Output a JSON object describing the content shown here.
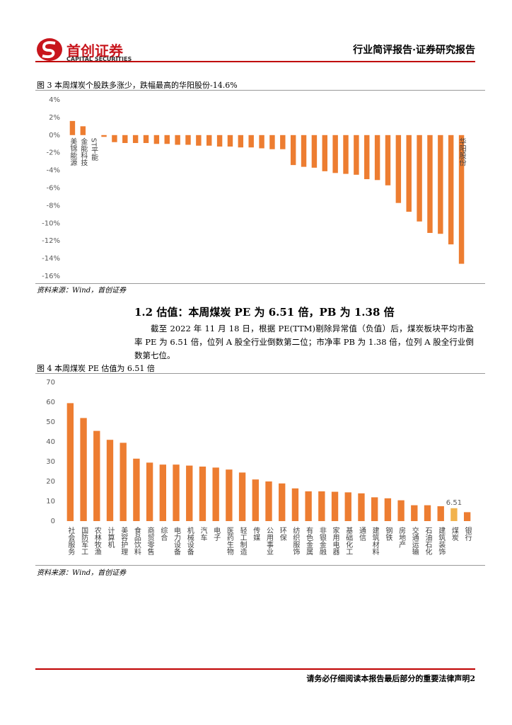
{
  "header": {
    "logo_cn": "首创证券",
    "logo_en": "CAPITAL SECURITIES",
    "report_type": "行业简评报告·证券研究报告"
  },
  "figure3": {
    "caption": "图 3 本周煤炭个股跌多涨少，跌幅最高的华阳股份-14.6%",
    "source": "资料来源：Wind，首创证券"
  },
  "section": {
    "heading": "1.2 估值：本周煤炭 PE 为 6.51 倍，PB 为 1.38 倍",
    "paragraph": "截至 2022 年 11 月 18 日，根据 PE(TTM)剔除异常值（负值）后，煤炭板块平均市盈率 PE 为 6.51 倍，位列 A 股全行业倒数第二位；市净率 PB 为 1.38 倍，位列 A 股全行业倒数第七位。"
  },
  "figure4": {
    "caption": "图 4 本周煤炭 PE 估值为 6.51 倍",
    "source": "资料来源：Wind，首创证券"
  },
  "footer": {
    "text": "请务必仔细阅读本报告最后部分的重要法律声明2"
  },
  "chart_data": [
    {
      "type": "bar",
      "color": "#ED7D31",
      "categories": [
        "美锦能源",
        "金能科技",
        "ST平能",
        null,
        null,
        null,
        null,
        null,
        null,
        null,
        null,
        null,
        null,
        null,
        null,
        null,
        null,
        null,
        null,
        null,
        null,
        null,
        null,
        null,
        null,
        null,
        null,
        null,
        null,
        null,
        null,
        null,
        null,
        null,
        null,
        null,
        null,
        "华阳股份"
      ],
      "values": [
        1.6,
        1.0,
        0,
        -0.2,
        -0.8,
        -0.9,
        -0.9,
        -0.9,
        -1.0,
        -1.0,
        -1.1,
        -1.1,
        -1.2,
        -1.2,
        -1.3,
        -1.3,
        -1.4,
        -1.4,
        -1.5,
        -1.6,
        -1.6,
        -3.4,
        -3.6,
        -3.7,
        -4.1,
        -4.3,
        -4.4,
        -4.5,
        -5.0,
        -5.1,
        -5.7,
        -7.7,
        -8.7,
        -9.8,
        -11.1,
        -11.2,
        -12.4,
        -14.6
      ],
      "ylim": [
        -16,
        4
      ],
      "yticks": [
        {
          "value": 4,
          "label": "4%"
        },
        {
          "value": 2,
          "label": "2%"
        },
        {
          "value": 0,
          "label": "0%"
        },
        {
          "value": -2,
          "label": "-2%"
        },
        {
          "value": -4,
          "label": "-4%"
        },
        {
          "value": -6,
          "label": "-6%"
        },
        {
          "value": -8,
          "label": "-8%"
        },
        {
          "value": -10,
          "label": "-10%"
        },
        {
          "value": -12,
          "label": "-12%"
        },
        {
          "value": -14,
          "label": "-14%"
        },
        {
          "value": -16,
          "label": "-16%"
        }
      ]
    },
    {
      "type": "bar",
      "categories": [
        "社会服务",
        "国防军工",
        "农林牧渔",
        "计算机",
        "美容护理",
        "食品饮料",
        "商贸零售",
        "综合",
        "电力设备",
        "机械设备",
        "汽车",
        "电子",
        "医药生物",
        "轻工制造",
        "传媒",
        "公用事业",
        "环保",
        "纺织服饰",
        "有色金属",
        "非银金融",
        "家用电器",
        "基础化工",
        "通信",
        "建筑材料",
        "钢铁",
        "房地产",
        "交通运输",
        "石油石化",
        "建筑装饰",
        "煤炭",
        "银行"
      ],
      "values": [
        59.5,
        52,
        45.5,
        41,
        39.5,
        31.5,
        29.5,
        28.5,
        28.5,
        28,
        27.5,
        27,
        26,
        24.5,
        21,
        20,
        19,
        16.5,
        15,
        15,
        14.8,
        14.5,
        14,
        12,
        11.5,
        10.5,
        8,
        8,
        7.5,
        6.51,
        4.5
      ],
      "colors": [
        "#ED7D31",
        "#ED7D31",
        "#ED7D31",
        "#ED7D31",
        "#ED7D31",
        "#ED7D31",
        "#ED7D31",
        "#ED7D31",
        "#ED7D31",
        "#ED7D31",
        "#ED7D31",
        "#ED7D31",
        "#ED7D31",
        "#ED7D31",
        "#ED7D31",
        "#ED7D31",
        "#ED7D31",
        "#ED7D31",
        "#ED7D31",
        "#ED7D31",
        "#ED7D31",
        "#ED7D31",
        "#ED7D31",
        "#ED7D31",
        "#ED7D31",
        "#ED7D31",
        "#ED7D31",
        "#ED7D31",
        "#ED7D31",
        "#F2B34E",
        "#ED7D31"
      ],
      "value_labels": [
        null,
        null,
        null,
        null,
        null,
        null,
        null,
        null,
        null,
        null,
        null,
        null,
        null,
        null,
        null,
        null,
        null,
        null,
        null,
        null,
        null,
        null,
        null,
        null,
        null,
        null,
        null,
        null,
        null,
        "6.51",
        null
      ],
      "ylim": [
        0,
        70
      ],
      "yticks": [
        0,
        10,
        20,
        30,
        40,
        50,
        60,
        70
      ]
    }
  ]
}
